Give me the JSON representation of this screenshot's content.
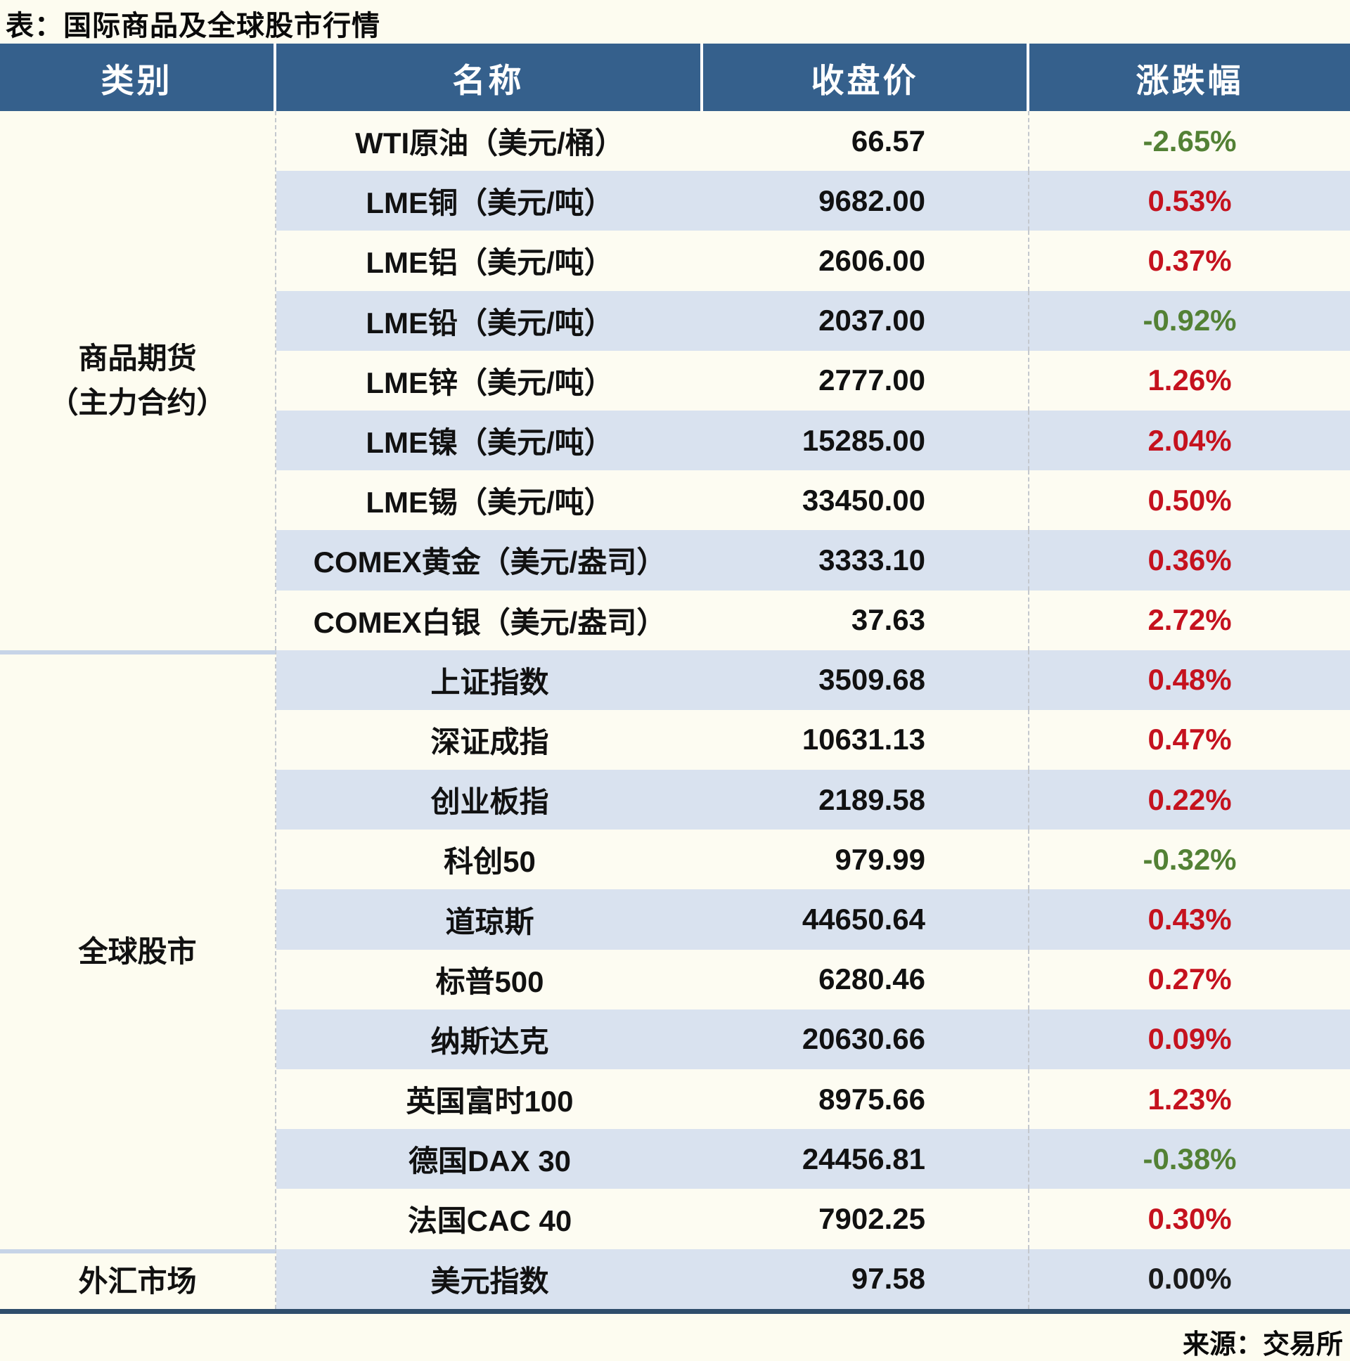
{
  "title": "表：国际商品及全球股市行情",
  "source": "来源：交易所",
  "colors": {
    "header_bg": "#35608C",
    "header_text": "#FFFFFF",
    "row_alt_blue": "#D9E2EF",
    "row_cream": "#FDFCF2",
    "table_bottom_border": "#2E4D6B",
    "up_red": "#C5121E",
    "down_green": "#538135",
    "flat_black": "#1A1A1A"
  },
  "chart_data": {
    "type": "table",
    "title": "表：国际商品及全球股市行情",
    "columns": [
      "类别",
      "名称",
      "收盘价",
      "涨跌幅"
    ],
    "sections": [
      {
        "category_lines": [
          "商品期货",
          "（主力合约）"
        ],
        "rows": [
          {
            "name": "WTI原油（美元/桶）",
            "close": "66.57",
            "change": "-2.65%",
            "direction": "down"
          },
          {
            "name": "LME铜（美元/吨）",
            "close": "9682.00",
            "change": "0.53%",
            "direction": "up"
          },
          {
            "name": "LME铝（美元/吨）",
            "close": "2606.00",
            "change": "0.37%",
            "direction": "up"
          },
          {
            "name": "LME铅（美元/吨）",
            "close": "2037.00",
            "change": "-0.92%",
            "direction": "down"
          },
          {
            "name": "LME锌（美元/吨）",
            "close": "2777.00",
            "change": "1.26%",
            "direction": "up"
          },
          {
            "name": "LME镍（美元/吨）",
            "close": "15285.00",
            "change": "2.04%",
            "direction": "up"
          },
          {
            "name": "LME锡（美元/吨）",
            "close": "33450.00",
            "change": "0.50%",
            "direction": "up"
          },
          {
            "name": "COMEX黄金（美元/盎司）",
            "close": "3333.10",
            "change": "0.36%",
            "direction": "up"
          },
          {
            "name": "COMEX白银（美元/盎司）",
            "close": "37.63",
            "change": "2.72%",
            "direction": "up"
          }
        ]
      },
      {
        "category_lines": [
          "全球股市"
        ],
        "rows": [
          {
            "name": "上证指数",
            "close": "3509.68",
            "change": "0.48%",
            "direction": "up"
          },
          {
            "name": "深证成指",
            "close": "10631.13",
            "change": "0.47%",
            "direction": "up"
          },
          {
            "name": "创业板指",
            "close": "2189.58",
            "change": "0.22%",
            "direction": "up"
          },
          {
            "name": "科创50",
            "close": "979.99",
            "change": "-0.32%",
            "direction": "down"
          },
          {
            "name": "道琼斯",
            "close": "44650.64",
            "change": "0.43%",
            "direction": "up"
          },
          {
            "name": "标普500",
            "close": "6280.46",
            "change": "0.27%",
            "direction": "up"
          },
          {
            "name": "纳斯达克",
            "close": "20630.66",
            "change": "0.09%",
            "direction": "up"
          },
          {
            "name": "英国富时100",
            "close": "8975.66",
            "change": "1.23%",
            "direction": "up"
          },
          {
            "name": "德国DAX 30",
            "close": "24456.81",
            "change": "-0.38%",
            "direction": "down"
          },
          {
            "name": "法国CAC 40",
            "close": "7902.25",
            "change": "0.30%",
            "direction": "up"
          }
        ]
      },
      {
        "category_lines": [
          "外汇市场"
        ],
        "rows": [
          {
            "name": "美元指数",
            "close": "97.58",
            "change": "0.00%",
            "direction": "flat"
          }
        ]
      }
    ]
  }
}
